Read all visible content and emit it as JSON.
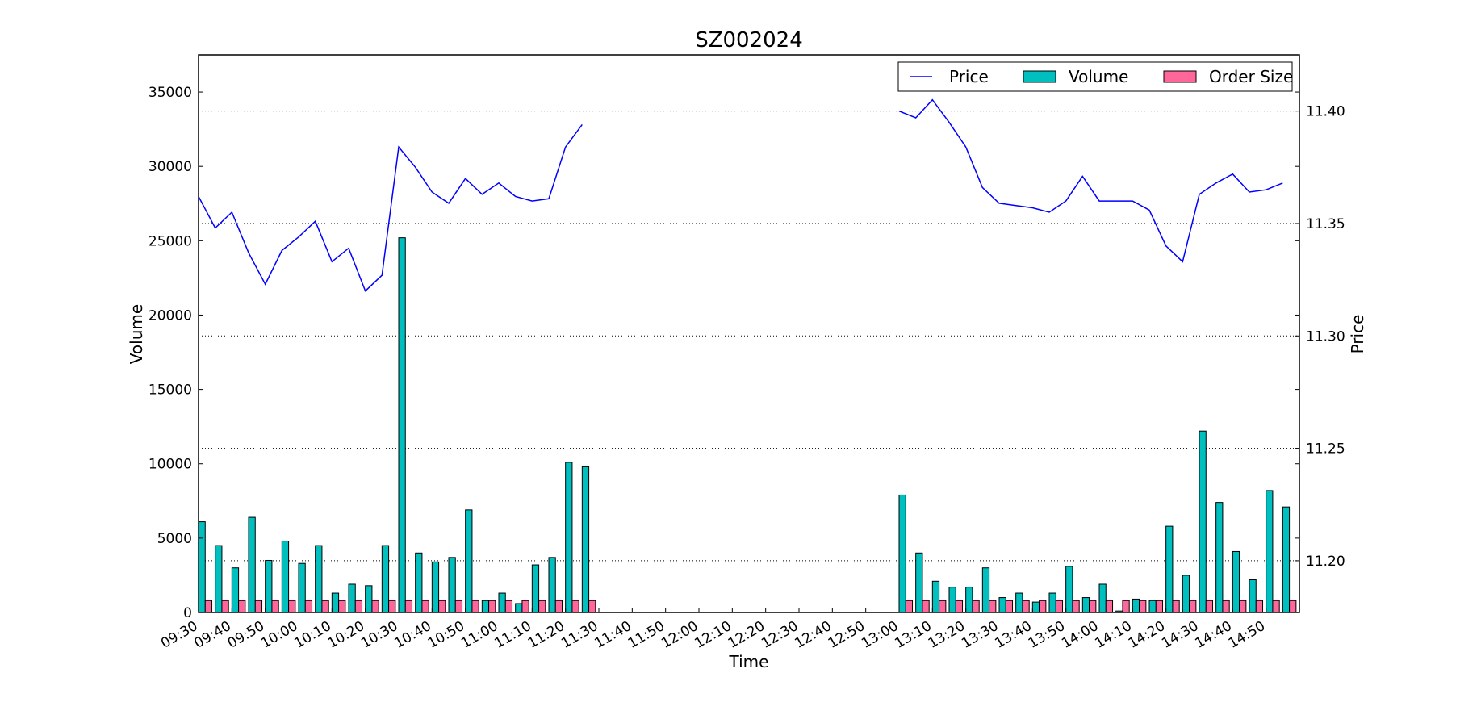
{
  "chart_data": {
    "type": "bar",
    "title": "SZ002024",
    "xlabel": "Time",
    "ylabel_left": "Volume",
    "ylabel_right": "Price",
    "time_slots": [
      "09:30",
      "09:35",
      "09:40",
      "09:45",
      "09:50",
      "09:55",
      "10:00",
      "10:05",
      "10:10",
      "10:15",
      "10:20",
      "10:25",
      "10:30",
      "10:35",
      "10:40",
      "10:45",
      "10:50",
      "10:55",
      "11:00",
      "11:05",
      "11:10",
      "11:15",
      "11:20",
      "11:25",
      "11:30",
      "11:35",
      "11:40",
      "11:45",
      "11:50",
      "11:55",
      "12:00",
      "12:05",
      "12:10",
      "12:15",
      "12:20",
      "12:25",
      "12:30",
      "12:35",
      "12:40",
      "12:45",
      "12:50",
      "12:55",
      "13:00",
      "13:05",
      "13:10",
      "13:15",
      "13:20",
      "13:25",
      "13:30",
      "13:35",
      "13:40",
      "13:45",
      "13:50",
      "13:55",
      "14:00",
      "14:05",
      "14:10",
      "14:15",
      "14:20",
      "14:25",
      "14:30",
      "14:35",
      "14:40",
      "14:45",
      "14:50",
      "14:55",
      "15:00"
    ],
    "x_tick_labels": [
      "09:30",
      "09:40",
      "09:50",
      "10:00",
      "10:10",
      "10:20",
      "10:30",
      "10:40",
      "10:50",
      "11:00",
      "11:10",
      "11:20",
      "11:30",
      "11:40",
      "11:50",
      "12:00",
      "12:10",
      "12:20",
      "12:30",
      "12:40",
      "12:50",
      "13:00",
      "13:10",
      "13:20",
      "13:30",
      "13:40",
      "13:50",
      "14:00",
      "14:10",
      "14:20",
      "14:30",
      "14:40",
      "14:50"
    ],
    "volume_axis": {
      "ylim": [
        0,
        37500
      ],
      "ticks": [
        0,
        5000,
        10000,
        15000,
        20000,
        25000,
        30000,
        35000
      ]
    },
    "price_axis": {
      "ylim": [
        11.177,
        11.425
      ],
      "ticks": [
        11.2,
        11.25,
        11.3,
        11.35,
        11.4
      ]
    },
    "grid": "horizontal-dotted",
    "legend_position": "top-right",
    "series": [
      {
        "name": "Price",
        "kind": "line",
        "axis": "right",
        "color": "#0000ff",
        "values": [
          11.362,
          11.348,
          11.355,
          11.337,
          11.323,
          11.338,
          11.344,
          11.351,
          11.333,
          11.339,
          11.32,
          11.327,
          11.384,
          11.375,
          11.364,
          11.359,
          11.37,
          11.363,
          11.368,
          11.362,
          11.36,
          11.361,
          11.384,
          11.394,
          null,
          null,
          null,
          null,
          null,
          null,
          null,
          null,
          null,
          null,
          null,
          null,
          null,
          null,
          null,
          null,
          null,
          null,
          11.4,
          11.397,
          11.405,
          11.395,
          11.384,
          11.366,
          11.359,
          11.358,
          11.357,
          11.355,
          11.36,
          11.371,
          11.36,
          11.36,
          11.36,
          11.356,
          11.34,
          11.333,
          11.363,
          11.368,
          11.372,
          11.364,
          11.365,
          11.368,
          null
        ]
      },
      {
        "name": "Volume",
        "kind": "bar",
        "axis": "left",
        "color": "#00bfbf",
        "values": [
          6100,
          4500,
          3000,
          6400,
          3500,
          4800,
          3300,
          4500,
          1300,
          1900,
          1800,
          4500,
          25200,
          4000,
          3400,
          3700,
          6900,
          800,
          1300,
          600,
          3200,
          3700,
          10100,
          9800,
          0,
          0,
          0,
          0,
          0,
          0,
          0,
          0,
          0,
          0,
          0,
          0,
          0,
          0,
          0,
          0,
          0,
          0,
          7900,
          4000,
          2100,
          1700,
          1700,
          3000,
          1000,
          1300,
          700,
          1300,
          3100,
          1000,
          1900,
          100,
          900,
          800,
          5800,
          2500,
          12200,
          7400,
          4100,
          2200,
          8200,
          7100,
          0
        ]
      },
      {
        "name": "Order Size",
        "kind": "bar",
        "axis": "left",
        "color": "#ff6699",
        "values": [
          800,
          800,
          800,
          800,
          800,
          800,
          800,
          800,
          800,
          800,
          800,
          800,
          800,
          800,
          800,
          800,
          800,
          800,
          800,
          800,
          800,
          800,
          800,
          800,
          0,
          0,
          0,
          0,
          0,
          0,
          0,
          0,
          0,
          0,
          0,
          0,
          0,
          0,
          0,
          0,
          0,
          0,
          800,
          800,
          800,
          800,
          800,
          800,
          800,
          800,
          800,
          800,
          800,
          800,
          800,
          800,
          800,
          800,
          800,
          800,
          800,
          800,
          800,
          800,
          800,
          800,
          0
        ]
      }
    ]
  }
}
